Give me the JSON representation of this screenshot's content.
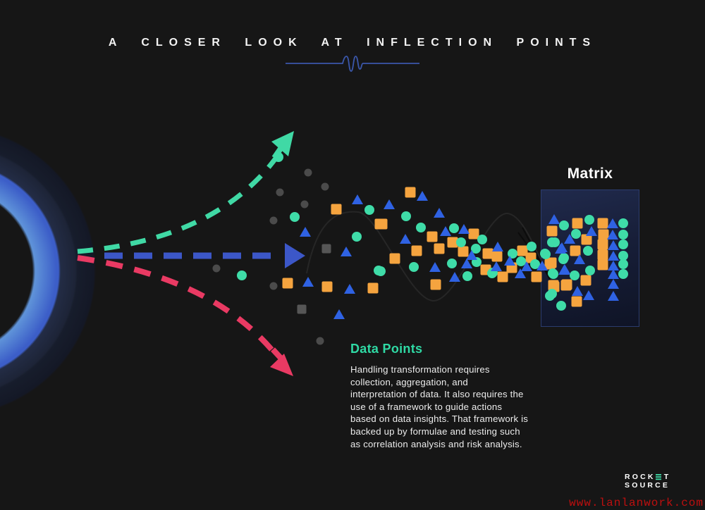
{
  "header": {
    "title": "A CLOSER LOOK AT INFLECTION POINTS"
  },
  "matrix": {
    "label": "Matrix"
  },
  "data_points_section": {
    "heading": "Data Points",
    "body": "Handling transformation requires\ncollection, aggregation, and\ninterpretation of data. It also requires the\nuse of a framework to guide actions\nbased on data insights. That framework is\nbacked up by formulae and testing such\nas correlation analysis and risk analysis."
  },
  "logo": {
    "part1": "ROCK",
    "part2": "T",
    "line2": "SOURCE"
  },
  "watermark": "www.lanlanwork.com",
  "colors": {
    "background": "#161616",
    "title_text": "#f3f3f3",
    "heading_teal": "#2fd9a4",
    "body_text": "#ececec",
    "divider_blue": "#3b57aa",
    "matrix_border": "#2b3c6e",
    "watermark_red": "#bd0f0f",
    "ring_bright_blue": "#3c5ec8"
  },
  "arrows": [
    {
      "id": "upside",
      "color": "#40D9A5"
    },
    {
      "id": "baseline",
      "color": "#3C57C8"
    },
    {
      "id": "downside",
      "color": "#E93A63"
    }
  ],
  "chart_data": {
    "type": "scatter",
    "title": "Inflection point scatter converging into Matrix",
    "series": [
      {
        "name": "gray-dot",
        "shape": "circle",
        "color": "#4b4b4b",
        "size": 11,
        "points": [
          [
            307,
            381
          ],
          [
            388,
            313
          ],
          [
            397,
            273
          ],
          [
            432,
            290
          ],
          [
            437,
            245
          ],
          [
            461,
            265
          ],
          [
            388,
            406
          ],
          [
            454,
            484
          ]
        ]
      },
      {
        "name": "gray-square",
        "shape": "square",
        "color": "#565656",
        "size": 13,
        "points": [
          [
            463,
            353
          ],
          [
            428,
            439
          ]
        ]
      },
      {
        "name": "orange-square",
        "shape": "square",
        "color": "#F5A43F",
        "size": 15,
        "points": [
          [
            477,
            297
          ],
          [
            539,
            318
          ],
          [
            408,
            402
          ],
          [
            464,
            407
          ],
          [
            529,
            409
          ],
          [
            582,
            273
          ],
          [
            542,
            318
          ],
          [
            613,
            336
          ],
          [
            591,
            356
          ],
          [
            623,
            353
          ],
          [
            657,
            357
          ],
          [
            672,
            332
          ],
          [
            642,
            344
          ],
          [
            560,
            367
          ],
          [
            689,
            383
          ],
          [
            618,
            404
          ],
          [
            692,
            360
          ],
          [
            705,
            364
          ],
          [
            741,
            356
          ],
          [
            753,
            366
          ],
          [
            726,
            380
          ],
          [
            713,
            393
          ],
          [
            761,
            393
          ],
          [
            780,
            375
          ],
          [
            786,
            407
          ],
          [
            804,
            404
          ],
          [
            819,
            317
          ],
          [
            855,
            317
          ],
          [
            783,
            328
          ],
          [
            856,
            333
          ],
          [
            832,
            340
          ],
          [
            855,
            347
          ],
          [
            816,
            356
          ],
          [
            855,
            362
          ],
          [
            782,
            373
          ],
          [
            855,
            376
          ],
          [
            831,
            398
          ],
          [
            785,
            405
          ],
          [
            803,
            405
          ],
          [
            818,
            428
          ]
        ]
      },
      {
        "name": "teal-circle",
        "shape": "circle",
        "color": "#3FDCA8",
        "size": 14,
        "points": [
          [
            395,
            223
          ],
          [
            418,
            308
          ],
          [
            506,
            336
          ],
          [
            524,
            298
          ],
          [
            537,
            384
          ],
          [
            343,
            391
          ],
          [
            576,
            307
          ],
          [
            597,
            323
          ],
          [
            644,
            324
          ],
          [
            654,
            344
          ],
          [
            684,
            340
          ],
          [
            675,
            353
          ],
          [
            676,
            372
          ],
          [
            641,
            374
          ],
          [
            663,
            392
          ],
          [
            540,
            385
          ],
          [
            698,
            388
          ],
          [
            587,
            379
          ],
          [
            727,
            360
          ],
          [
            754,
            350
          ],
          [
            739,
            371
          ],
          [
            773,
            360
          ],
          [
            759,
            375
          ],
          [
            699,
            387
          ],
          [
            784,
            388
          ],
          [
            783,
            417
          ],
          [
            796,
            434
          ],
          [
            800,
            320
          ],
          [
            787,
            344
          ],
          [
            800,
            366
          ],
          [
            836,
            312
          ],
          [
            884,
            317
          ],
          [
            817,
            332
          ],
          [
            884,
            333
          ],
          [
            783,
            344
          ],
          [
            834,
            356
          ],
          [
            884,
            347
          ],
          [
            774,
            361
          ],
          [
            884,
            363
          ],
          [
            799,
            368
          ],
          [
            837,
            384
          ],
          [
            884,
            375
          ],
          [
            785,
            389
          ],
          [
            815,
            391
          ],
          [
            884,
            389
          ],
          [
            780,
            420
          ]
        ]
      },
      {
        "name": "blue-triangle",
        "shape": "triangle",
        "color": "#2F62E3",
        "size": 14,
        "points": [
          [
            507,
            283
          ],
          [
            433,
            329
          ],
          [
            491,
            357
          ],
          [
            437,
            400
          ],
          [
            496,
            410
          ],
          [
            481,
            446
          ],
          [
            552,
            290
          ],
          [
            599,
            278
          ],
          [
            623,
            302
          ],
          [
            632,
            328
          ],
          [
            658,
            325
          ],
          [
            575,
            339
          ],
          [
            669,
            362
          ],
          [
            662,
            374
          ],
          [
            617,
            379
          ],
          [
            645,
            393
          ],
          [
            706,
            350
          ],
          [
            723,
            370
          ],
          [
            704,
            378
          ],
          [
            747,
            378
          ],
          [
            769,
            377
          ],
          [
            738,
            388
          ],
          [
            800,
            383
          ],
          [
            786,
            311
          ],
          [
            808,
            339
          ],
          [
            797,
            351
          ],
          [
            839,
            328
          ],
          [
            869,
            317
          ],
          [
            869,
            333
          ],
          [
            795,
            353
          ],
          [
            870,
            348
          ],
          [
            822,
            368
          ],
          [
            870,
            363
          ],
          [
            801,
            382
          ],
          [
            870,
            377
          ],
          [
            870,
            389
          ],
          [
            819,
            413
          ],
          [
            870,
            403
          ],
          [
            835,
            419
          ],
          [
            870,
            420
          ]
        ]
      }
    ]
  }
}
